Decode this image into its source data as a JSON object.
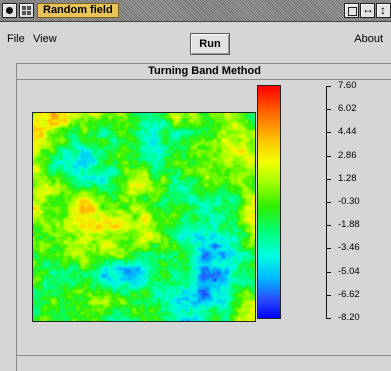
{
  "window": {
    "title": "Random field"
  },
  "menubar": {
    "file": "File",
    "view": "View",
    "run": "Run",
    "about": "About"
  },
  "panel": {
    "title": "Turning Band Method"
  },
  "colorbar": {
    "ticks": [
      "7.60",
      "6.02",
      "4.44",
      "2.86",
      "1.28",
      "-0.30",
      "-1.88",
      "-3.46",
      "-5.04",
      "-6.62",
      "-8.20"
    ],
    "max": 7.6,
    "min": -8.2
  },
  "colors": {
    "title_highlight": "#e8c35a",
    "background": "#d6d6d6"
  }
}
